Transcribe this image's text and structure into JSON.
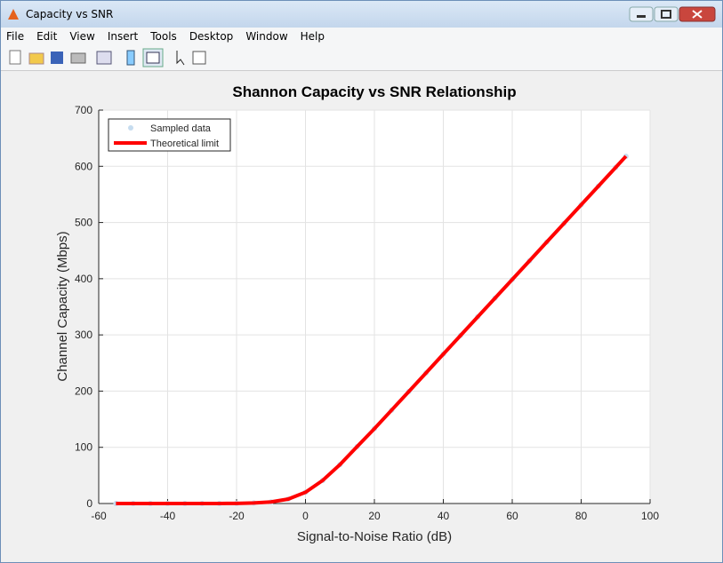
{
  "window": {
    "title": "Capacity vs SNR",
    "menu": [
      "File",
      "Edit",
      "View",
      "Insert",
      "Tools",
      "Desktop",
      "Window",
      "Help"
    ]
  },
  "chart_data": {
    "type": "line",
    "title": "Shannon Capacity vs SNR Relationship",
    "x_label": "Signal-to-Noise Ratio (dB)",
    "y_label": "Channel Capacity (Mbps)",
    "x": [
      -55,
      -50,
      -45,
      -40,
      -35,
      -30,
      -25,
      -20,
      -15,
      -10,
      -5,
      0,
      5,
      10,
      15,
      20,
      25,
      30,
      35,
      40,
      45,
      50,
      55,
      60,
      65,
      70,
      75,
      80,
      85,
      90,
      93
    ],
    "series": [
      {
        "name": "Sampled data",
        "color": "#c6dcef",
        "style": "markers",
        "values": [
          0,
          0,
          0,
          0,
          0.01,
          0.03,
          0.09,
          0.29,
          0.9,
          2.75,
          7.9,
          20,
          41.1,
          69.2,
          101.4,
          133.2,
          166.2,
          199.3,
          232.5,
          265.8,
          299.0,
          332.2,
          365.4,
          398.6,
          431.8,
          465.1,
          498.3,
          531.5,
          564.7,
          597.9,
          617.9
        ]
      },
      {
        "name": "Theoretical limit",
        "color": "#ff0000",
        "style": "line",
        "values": [
          0,
          0,
          0,
          0,
          0.01,
          0.03,
          0.09,
          0.29,
          0.9,
          2.75,
          7.9,
          20,
          41.1,
          69.2,
          101.4,
          133.2,
          166.2,
          199.3,
          232.5,
          265.8,
          299.0,
          332.2,
          365.4,
          398.6,
          431.8,
          465.1,
          498.3,
          531.5,
          564.7,
          597.9,
          617.9
        ]
      }
    ],
    "xlim": [
      -60,
      100
    ],
    "xticks": [
      -60,
      -40,
      -20,
      0,
      20,
      40,
      60,
      80,
      100
    ],
    "ylim": [
      0,
      700
    ],
    "yticks": [
      0,
      100,
      200,
      300,
      400,
      500,
      600,
      700
    ],
    "grid": true,
    "legend": "northwest"
  }
}
